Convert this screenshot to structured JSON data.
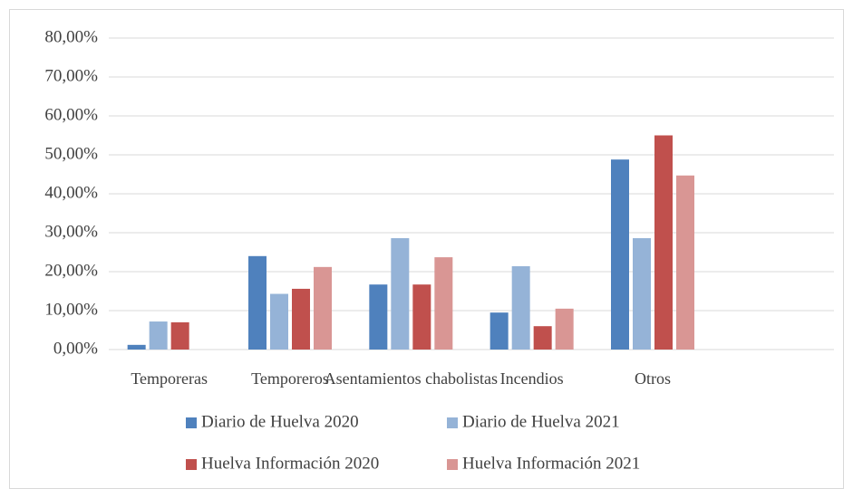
{
  "chart_data": {
    "type": "bar",
    "categories": [
      "Temporeras",
      "Temporeros",
      "Asentamientos chabolistas",
      "Incendios",
      "Otros",
      null
    ],
    "series": [
      {
        "name": "Diario de Huelva 2020",
        "color": "#4f81bd",
        "values": [
          1.2,
          24.0,
          16.7,
          9.5,
          48.8,
          null
        ]
      },
      {
        "name": "Diario de Huelva 2021",
        "color": "#95b3d7",
        "values": [
          7.2,
          14.3,
          28.6,
          21.4,
          28.6,
          null
        ]
      },
      {
        "name": "Huelva Información 2020",
        "color": "#c0504d",
        "values": [
          7.0,
          15.6,
          16.7,
          6.0,
          55.0,
          null
        ]
      },
      {
        "name": "Huelva Información 2021",
        "color": "#d99694",
        "values": [
          0,
          21.2,
          23.7,
          10.5,
          44.7,
          null
        ]
      }
    ],
    "ylim": [
      0,
      80
    ],
    "yticks": [
      {
        "value": 0,
        "label": "0,00%"
      },
      {
        "value": 10,
        "label": "10,00%"
      },
      {
        "value": 20,
        "label": "20,00%"
      },
      {
        "value": 30,
        "label": "30,00%"
      },
      {
        "value": 40,
        "label": "40,00%"
      },
      {
        "value": 50,
        "label": "50,00%"
      },
      {
        "value": 60,
        "label": "60,00%"
      },
      {
        "value": 70,
        "label": "70,00%"
      },
      {
        "value": 80,
        "label": "80,00%"
      }
    ],
    "grid": true
  }
}
